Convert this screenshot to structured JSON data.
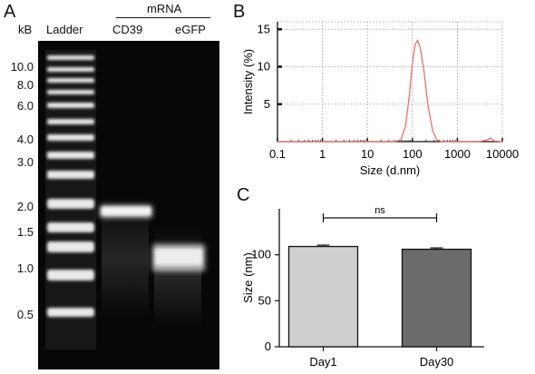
{
  "panels": {
    "A": {
      "letter": "A",
      "unit_label": "kB",
      "ladder_label": "Ladder",
      "group_label": "mRNA",
      "lane_labels": [
        "CD39",
        "eGFP"
      ],
      "ladder_marks": [
        "10.0",
        "8.0",
        "6.0",
        "4.0",
        "3.0",
        "2.0",
        "1.5",
        "1.0",
        "0.5"
      ]
    },
    "B": {
      "letter": "B"
    },
    "C": {
      "letter": "C"
    }
  },
  "chart_data": [
    {
      "type": "line",
      "panel": "B",
      "xlabel": "Size (d.nm)",
      "ylabel": "Intensity (%)",
      "xscale": "log",
      "xlim": [
        0.1,
        10000
      ],
      "ylim": [
        0,
        16
      ],
      "xticks": [
        "0.1",
        "1",
        "10",
        "100",
        "1000",
        "10000"
      ],
      "yticks": [
        "5",
        "10",
        "15"
      ],
      "grid": true,
      "line_color": "#e8706a",
      "series": [
        {
          "x": [
            0.1,
            1,
            10,
            40,
            55,
            70,
            85,
            100,
            115,
            130,
            150,
            180,
            220,
            280,
            350,
            450,
            1000,
            3000,
            4500,
            5500,
            6500,
            10000
          ],
          "y": [
            0,
            0,
            0,
            0,
            0.2,
            2.0,
            6.0,
            10.5,
            13.0,
            13.5,
            12.5,
            9.5,
            5.0,
            1.5,
            0.2,
            0,
            0,
            0,
            0.2,
            0.5,
            0.1,
            0
          ]
        }
      ]
    },
    {
      "type": "bar",
      "panel": "C",
      "ylabel": "Size (nm)",
      "ylim": [
        0,
        150
      ],
      "yticks": [
        "0",
        "50",
        "100"
      ],
      "categories": [
        "Day1",
        "Day30"
      ],
      "values": [
        109,
        106
      ],
      "errors": [
        1.5,
        1.5
      ],
      "colors": [
        "#cfcfcf",
        "#6b6b6b"
      ],
      "significance": "ns"
    }
  ]
}
